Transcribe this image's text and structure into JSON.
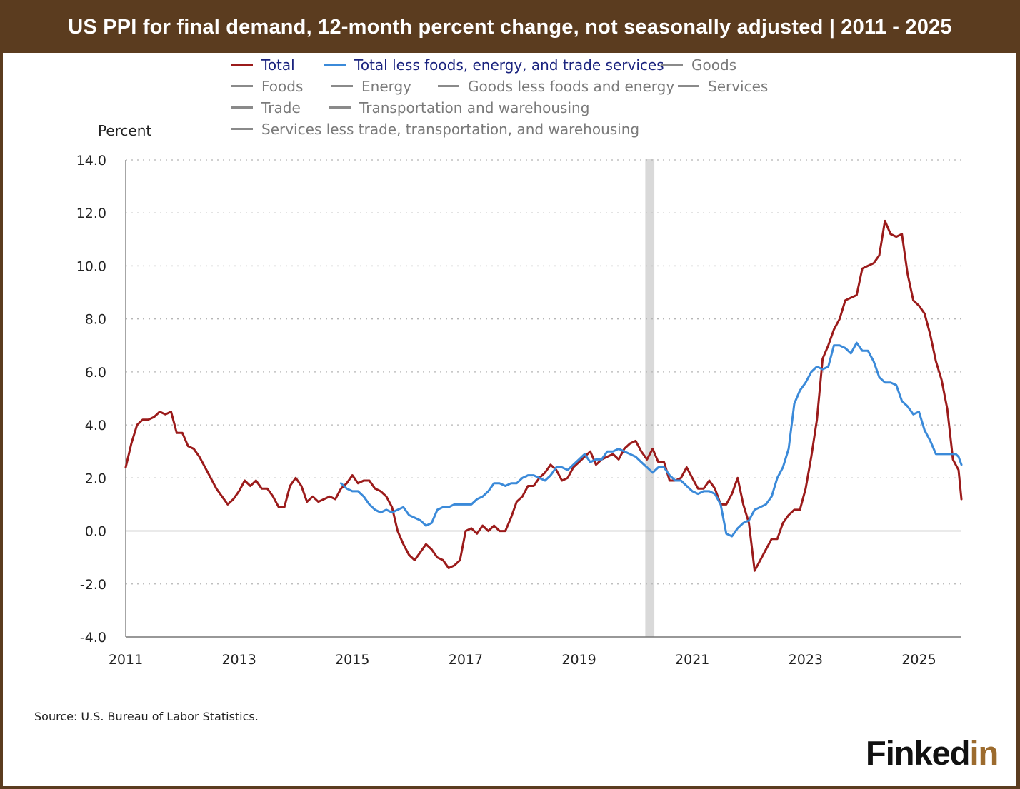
{
  "header": {
    "title": "US PPI for final demand, 12-month percent change, not seasonally adjusted | 2011 - 2025"
  },
  "legend": [
    {
      "label": "Total",
      "color": "#9b1b1b",
      "text_color": "#1a237e"
    },
    {
      "label": "Total less foods, energy, and trade services",
      "color": "#3b8ad9",
      "text_color": "#1a237e"
    },
    {
      "label": "Goods",
      "color": "#8a8a8a",
      "text_color": "#7a7a7a"
    },
    {
      "label": "Foods",
      "color": "#8a8a8a",
      "text_color": "#7a7a7a"
    },
    {
      "label": "Energy",
      "color": "#8a8a8a",
      "text_color": "#7a7a7a"
    },
    {
      "label": "Goods less foods and energy",
      "color": "#8a8a8a",
      "text_color": "#7a7a7a"
    },
    {
      "label": "Services",
      "color": "#8a8a8a",
      "text_color": "#7a7a7a"
    },
    {
      "label": "Trade",
      "color": "#8a8a8a",
      "text_color": "#7a7a7a"
    },
    {
      "label": "Transportation and warehousing",
      "color": "#8a8a8a",
      "text_color": "#7a7a7a"
    },
    {
      "label": "Services less trade, transportation, and warehousing",
      "color": "#8a8a8a",
      "text_color": "#7a7a7a"
    }
  ],
  "source": "Source: U.S. Bureau of Labor Statistics.",
  "logo": {
    "main": "Finked",
    "accent": "in"
  },
  "chart_data": {
    "type": "line",
    "ylabel": "Percent",
    "ylim": [
      -4.0,
      14.0
    ],
    "yticks": [
      -4.0,
      -2.0,
      0.0,
      2.0,
      4.0,
      6.0,
      8.0,
      10.0,
      12.0,
      14.0
    ],
    "xlim": [
      2011.0,
      2025.75
    ],
    "xticks": [
      2011,
      2013,
      2015,
      2017,
      2019,
      2021,
      2023,
      2025
    ],
    "grid": "horizontal dotted",
    "recession_band": [
      2020.17,
      2020.33
    ],
    "series": [
      {
        "name": "Total",
        "color": "#9b1b1b",
        "points": [
          [
            2011.0,
            2.4
          ],
          [
            2011.1,
            3.3
          ],
          [
            2011.2,
            4.0
          ],
          [
            2011.3,
            4.2
          ],
          [
            2011.4,
            4.2
          ],
          [
            2011.5,
            4.3
          ],
          [
            2011.6,
            4.5
          ],
          [
            2011.7,
            4.4
          ],
          [
            2011.8,
            4.5
          ],
          [
            2011.9,
            3.7
          ],
          [
            2012.0,
            3.7
          ],
          [
            2012.1,
            3.2
          ],
          [
            2012.2,
            3.1
          ],
          [
            2012.3,
            2.8
          ],
          [
            2012.4,
            2.4
          ],
          [
            2012.5,
            2.0
          ],
          [
            2012.6,
            1.6
          ],
          [
            2012.7,
            1.3
          ],
          [
            2012.8,
            1.0
          ],
          [
            2012.9,
            1.2
          ],
          [
            2013.0,
            1.5
          ],
          [
            2013.1,
            1.9
          ],
          [
            2013.2,
            1.7
          ],
          [
            2013.3,
            1.9
          ],
          [
            2013.4,
            1.6
          ],
          [
            2013.5,
            1.6
          ],
          [
            2013.6,
            1.3
          ],
          [
            2013.7,
            0.9
          ],
          [
            2013.8,
            0.9
          ],
          [
            2013.9,
            1.7
          ],
          [
            2014.0,
            2.0
          ],
          [
            2014.1,
            1.7
          ],
          [
            2014.2,
            1.1
          ],
          [
            2014.3,
            1.3
          ],
          [
            2014.4,
            1.1
          ],
          [
            2014.5,
            1.2
          ],
          [
            2014.6,
            1.3
          ],
          [
            2014.7,
            1.2
          ],
          [
            2014.8,
            1.6
          ],
          [
            2014.9,
            1.8
          ],
          [
            2015.0,
            2.1
          ],
          [
            2015.1,
            1.8
          ],
          [
            2015.2,
            1.9
          ],
          [
            2015.3,
            1.9
          ],
          [
            2015.4,
            1.6
          ],
          [
            2015.5,
            1.5
          ],
          [
            2015.6,
            1.3
          ],
          [
            2015.7,
            0.9
          ],
          [
            2015.8,
            0.0
          ],
          [
            2015.9,
            -0.5
          ],
          [
            2016.0,
            -0.9
          ],
          [
            2016.1,
            -1.1
          ],
          [
            2016.2,
            -0.8
          ],
          [
            2016.3,
            -0.5
          ],
          [
            2016.4,
            -0.7
          ],
          [
            2016.5,
            -1.0
          ],
          [
            2016.6,
            -1.1
          ],
          [
            2016.7,
            -1.4
          ],
          [
            2016.8,
            -1.3
          ],
          [
            2016.9,
            -1.1
          ],
          [
            2017.0,
            0.0
          ],
          [
            2017.1,
            0.1
          ],
          [
            2017.2,
            -0.1
          ],
          [
            2017.3,
            0.2
          ],
          [
            2017.4,
            0.0
          ],
          [
            2017.5,
            0.2
          ],
          [
            2017.6,
            0.0
          ],
          [
            2017.7,
            0.0
          ],
          [
            2017.8,
            0.5
          ],
          [
            2017.9,
            1.1
          ],
          [
            2018.0,
            1.3
          ],
          [
            2018.1,
            1.7
          ],
          [
            2018.2,
            1.7
          ],
          [
            2018.3,
            2.0
          ],
          [
            2018.4,
            2.2
          ],
          [
            2018.5,
            2.5
          ],
          [
            2018.6,
            2.3
          ],
          [
            2018.7,
            1.9
          ],
          [
            2018.8,
            2.0
          ],
          [
            2018.9,
            2.4
          ],
          [
            2019.0,
            2.6
          ],
          [
            2019.1,
            2.8
          ],
          [
            2019.2,
            3.0
          ],
          [
            2019.3,
            2.5
          ],
          [
            2019.4,
            2.7
          ],
          [
            2019.5,
            2.8
          ],
          [
            2019.6,
            2.9
          ],
          [
            2019.7,
            2.7
          ],
          [
            2019.8,
            3.1
          ],
          [
            2019.9,
            3.3
          ],
          [
            2020.0,
            3.4
          ],
          [
            2020.1,
            3.0
          ],
          [
            2020.2,
            2.7
          ],
          [
            2020.3,
            3.1
          ],
          [
            2020.4,
            2.6
          ],
          [
            2020.5,
            2.6
          ],
          [
            2020.6,
            1.9
          ],
          [
            2020.7,
            1.9
          ],
          [
            2020.8,
            2.0
          ],
          [
            2020.9,
            2.4
          ],
          [
            2021.0,
            2.0
          ],
          [
            2021.1,
            1.6
          ],
          [
            2021.2,
            1.6
          ],
          [
            2021.3,
            1.9
          ],
          [
            2021.4,
            1.6
          ],
          [
            2021.5,
            1.0
          ],
          [
            2021.6,
            1.0
          ],
          [
            2021.7,
            1.4
          ],
          [
            2021.8,
            2.0
          ],
          [
            2021.9,
            1.0
          ],
          [
            2022.0,
            0.3
          ],
          [
            2022.1,
            -1.5
          ],
          [
            2022.2,
            -1.1
          ],
          [
            2022.3,
            -0.7
          ],
          [
            2022.4,
            -0.3
          ],
          [
            2022.5,
            -0.3
          ],
          [
            2022.6,
            0.3
          ],
          [
            2022.7,
            0.6
          ],
          [
            2022.8,
            0.8
          ],
          [
            2022.9,
            0.8
          ],
          [
            2023.0,
            1.6
          ],
          [
            2023.1,
            2.8
          ],
          [
            2023.2,
            4.2
          ],
          [
            2023.3,
            6.5
          ],
          [
            2023.4,
            7.0
          ],
          [
            2023.5,
            7.6
          ],
          [
            2023.6,
            8.0
          ],
          [
            2023.7,
            8.7
          ],
          [
            2023.8,
            8.8
          ],
          [
            2023.9,
            8.9
          ],
          [
            2024.0,
            9.9
          ],
          [
            2024.1,
            10.0
          ],
          [
            2024.2,
            10.1
          ],
          [
            2024.3,
            10.4
          ],
          [
            2024.4,
            11.7
          ],
          [
            2024.5,
            11.2
          ],
          [
            2024.6,
            11.1
          ],
          [
            2024.7,
            11.2
          ],
          [
            2024.8,
            9.7
          ],
          [
            2024.9,
            8.7
          ],
          [
            2025.0,
            8.5
          ],
          [
            2025.1,
            8.2
          ],
          [
            2025.2,
            7.4
          ],
          [
            2025.3,
            6.4
          ],
          [
            2025.4,
            5.7
          ],
          [
            2025.5,
            4.6
          ],
          [
            2025.6,
            2.7
          ],
          [
            2025.7,
            2.3
          ],
          [
            2025.75,
            1.2
          ]
        ]
      },
      {
        "name": "Total less foods, energy, and trade services",
        "color": "#3b8ad9",
        "points": [
          [
            2014.8,
            1.8
          ],
          [
            2014.9,
            1.6
          ],
          [
            2015.0,
            1.5
          ],
          [
            2015.1,
            1.5
          ],
          [
            2015.2,
            1.3
          ],
          [
            2015.3,
            1.0
          ],
          [
            2015.4,
            0.8
          ],
          [
            2015.5,
            0.7
          ],
          [
            2015.6,
            0.8
          ],
          [
            2015.7,
            0.7
          ],
          [
            2015.8,
            0.8
          ],
          [
            2015.9,
            0.9
          ],
          [
            2016.0,
            0.6
          ],
          [
            2016.1,
            0.5
          ],
          [
            2016.2,
            0.4
          ],
          [
            2016.3,
            0.2
          ],
          [
            2016.4,
            0.3
          ],
          [
            2016.5,
            0.8
          ],
          [
            2016.6,
            0.9
          ],
          [
            2016.7,
            0.9
          ],
          [
            2016.8,
            1.0
          ],
          [
            2016.9,
            1.0
          ],
          [
            2017.0,
            1.0
          ],
          [
            2017.1,
            1.0
          ],
          [
            2017.2,
            1.2
          ],
          [
            2017.3,
            1.3
          ],
          [
            2017.4,
            1.5
          ],
          [
            2017.5,
            1.8
          ],
          [
            2017.6,
            1.8
          ],
          [
            2017.7,
            1.7
          ],
          [
            2017.8,
            1.8
          ],
          [
            2017.9,
            1.8
          ],
          [
            2018.0,
            2.0
          ],
          [
            2018.1,
            2.1
          ],
          [
            2018.2,
            2.1
          ],
          [
            2018.3,
            2.0
          ],
          [
            2018.4,
            1.9
          ],
          [
            2018.5,
            2.1
          ],
          [
            2018.6,
            2.4
          ],
          [
            2018.7,
            2.4
          ],
          [
            2018.8,
            2.3
          ],
          [
            2018.9,
            2.5
          ],
          [
            2019.0,
            2.7
          ],
          [
            2019.1,
            2.9
          ],
          [
            2019.2,
            2.6
          ],
          [
            2019.3,
            2.7
          ],
          [
            2019.4,
            2.7
          ],
          [
            2019.5,
            3.0
          ],
          [
            2019.6,
            3.0
          ],
          [
            2019.7,
            3.1
          ],
          [
            2019.8,
            3.0
          ],
          [
            2019.9,
            2.9
          ],
          [
            2020.0,
            2.8
          ],
          [
            2020.1,
            2.6
          ],
          [
            2020.2,
            2.4
          ],
          [
            2020.3,
            2.2
          ],
          [
            2020.4,
            2.4
          ],
          [
            2020.5,
            2.4
          ],
          [
            2020.6,
            2.1
          ],
          [
            2020.7,
            1.9
          ],
          [
            2020.8,
            1.9
          ],
          [
            2020.9,
            1.7
          ],
          [
            2021.0,
            1.5
          ],
          [
            2021.1,
            1.4
          ],
          [
            2021.2,
            1.5
          ],
          [
            2021.3,
            1.5
          ],
          [
            2021.4,
            1.4
          ],
          [
            2021.5,
            1.0
          ],
          [
            2021.6,
            -0.1
          ],
          [
            2021.7,
            -0.2
          ],
          [
            2021.8,
            0.1
          ],
          [
            2021.9,
            0.3
          ],
          [
            2022.0,
            0.4
          ],
          [
            2022.1,
            0.8
          ],
          [
            2022.2,
            0.9
          ],
          [
            2022.3,
            1.0
          ],
          [
            2022.4,
            1.3
          ],
          [
            2022.5,
            2.0
          ],
          [
            2022.6,
            2.4
          ],
          [
            2022.7,
            3.1
          ],
          [
            2022.8,
            4.8
          ],
          [
            2022.9,
            5.3
          ],
          [
            2023.0,
            5.6
          ],
          [
            2023.1,
            6.0
          ],
          [
            2023.2,
            6.2
          ],
          [
            2023.3,
            6.1
          ],
          [
            2023.4,
            6.2
          ],
          [
            2023.5,
            7.0
          ],
          [
            2023.6,
            7.0
          ],
          [
            2023.7,
            6.9
          ],
          [
            2023.8,
            6.7
          ],
          [
            2023.9,
            7.1
          ],
          [
            2024.0,
            6.8
          ],
          [
            2024.1,
            6.8
          ],
          [
            2024.2,
            6.4
          ],
          [
            2024.3,
            5.8
          ],
          [
            2024.4,
            5.6
          ],
          [
            2024.5,
            5.6
          ],
          [
            2024.6,
            5.5
          ],
          [
            2024.7,
            4.9
          ],
          [
            2024.8,
            4.7
          ],
          [
            2024.9,
            4.4
          ],
          [
            2025.0,
            4.5
          ],
          [
            2025.1,
            3.8
          ],
          [
            2025.2,
            3.4
          ],
          [
            2025.3,
            2.9
          ],
          [
            2025.4,
            2.9
          ],
          [
            2025.5,
            2.9
          ],
          [
            2025.6,
            2.9
          ],
          [
            2025.65,
            2.9
          ],
          [
            2025.7,
            2.8
          ],
          [
            2025.75,
            2.5
          ]
        ]
      }
    ]
  }
}
